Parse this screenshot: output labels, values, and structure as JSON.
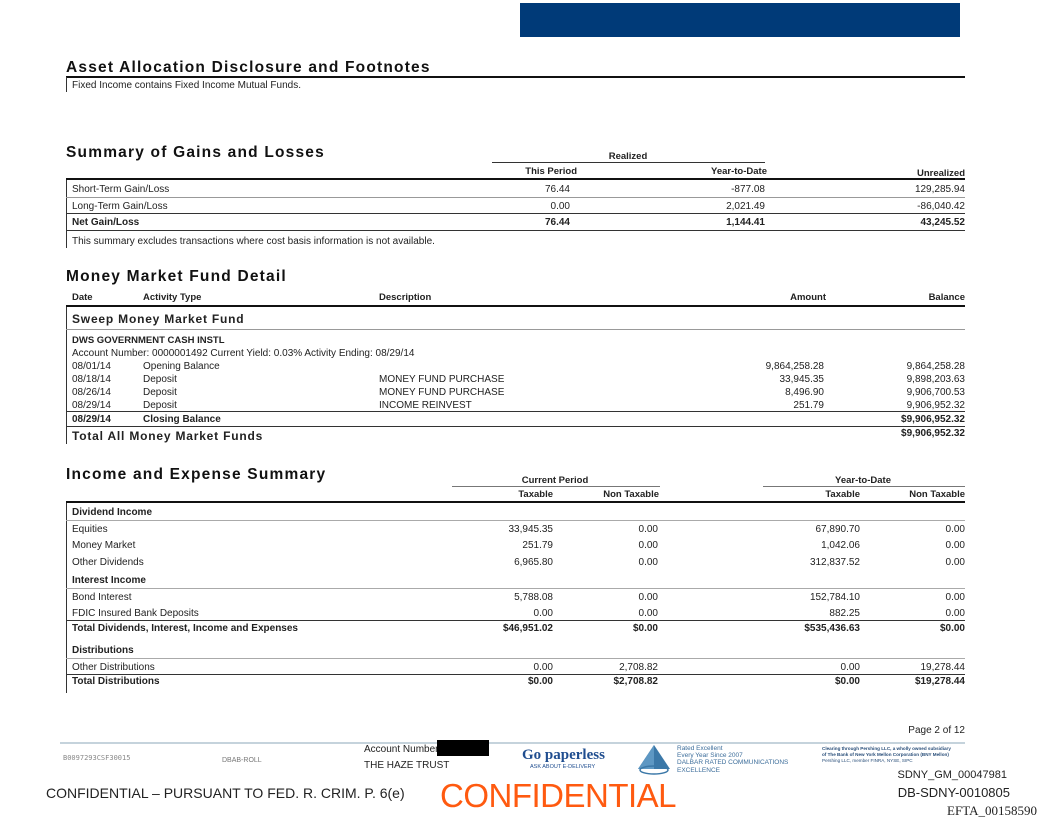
{
  "colors": {
    "header_bar": "#003a78",
    "confidential": "#ff5a10",
    "go_paperless": "#1f4d8f"
  },
  "asset_allocation": {
    "title": "Asset Allocation Disclosure and Footnotes",
    "note": "Fixed Income contains Fixed Income Mutual Funds."
  },
  "gains": {
    "title": "Summary of Gains and Losses",
    "realized": "Realized",
    "this_period": "This Period",
    "ytd": "Year-to-Date",
    "unrealized": "Unrealized",
    "rows": [
      {
        "label": "Short-Term Gain/Loss",
        "this_period": "76.44",
        "ytd": "-877.08",
        "unrealized": "129,285.94"
      },
      {
        "label": "Long-Term Gain/Loss",
        "this_period": "0.00",
        "ytd": "2,021.49",
        "unrealized": "-86,040.42"
      },
      {
        "label": "Net Gain/Loss",
        "this_period": "76.44",
        "ytd": "1,144.41",
        "unrealized": "43,245.52"
      }
    ],
    "note": "This summary excludes transactions where cost basis information is not available."
  },
  "mmf": {
    "title": "Money Market Fund Detail",
    "cols": {
      "date": "Date",
      "activity": "Activity Type",
      "description": "Description",
      "amount": "Amount",
      "balance": "Balance"
    },
    "sweep": "Sweep Money Market Fund",
    "fund": "DWS GOVERNMENT CASH INSTL",
    "account_line": "Account Number: 0000001492  Current Yield:  0.03%  Activity Ending: 08/29/14",
    "rows": [
      {
        "date": "08/01/14",
        "activity": "Opening Balance",
        "description": "",
        "amount": "9,864,258.28",
        "balance": "9,864,258.28"
      },
      {
        "date": "08/18/14",
        "activity": "Deposit",
        "description": "MONEY FUND PURCHASE",
        "amount": "33,945.35",
        "balance": "9,898,203.63"
      },
      {
        "date": "08/26/14",
        "activity": "Deposit",
        "description": "MONEY FUND PURCHASE",
        "amount": "8,496.90",
        "balance": "9,906,700.53"
      },
      {
        "date": "08/29/14",
        "activity": "Deposit",
        "description": "INCOME REINVEST",
        "amount": "251.79",
        "balance": "9,906,952.32"
      }
    ],
    "closing": {
      "date": "08/29/14",
      "activity": "Closing Balance",
      "balance": "$9,906,952.32"
    },
    "total": {
      "label": "Total All Money Market Funds",
      "balance": "$9,906,952.32"
    }
  },
  "income": {
    "title": "Income and Expense Summary",
    "current_period": "Current Period",
    "ytd": "Year-to-Date",
    "taxable": "Taxable",
    "non_taxable": "Non Taxable",
    "dividend_header": "Dividend Income",
    "dividends": [
      {
        "label": "Equities",
        "cp_tax": "33,945.35",
        "cp_non": "0.00",
        "ytd_tax": "67,890.70",
        "ytd_non": "0.00"
      },
      {
        "label": "Money Market",
        "cp_tax": "251.79",
        "cp_non": "0.00",
        "ytd_tax": "1,042.06",
        "ytd_non": "0.00"
      },
      {
        "label": "Other Dividends",
        "cp_tax": "6,965.80",
        "cp_non": "0.00",
        "ytd_tax": "312,837.52",
        "ytd_non": "0.00"
      }
    ],
    "interest_header": "Interest Income",
    "interest": [
      {
        "label": "Bond Interest",
        "cp_tax": "5,788.08",
        "cp_non": "0.00",
        "ytd_tax": "152,784.10",
        "ytd_non": "0.00"
      },
      {
        "label": "FDIC Insured Bank Deposits",
        "cp_tax": "0.00",
        "cp_non": "0.00",
        "ytd_tax": "882.25",
        "ytd_non": "0.00"
      }
    ],
    "total_div": {
      "label": "Total Dividends, Interest, Income and Expenses",
      "cp_tax": "$46,951.02",
      "cp_non": "$0.00",
      "ytd_tax": "$535,436.63",
      "ytd_non": "$0.00"
    },
    "dist_header": "Distributions",
    "other_dist": {
      "label": "Other Distributions",
      "cp_tax": "0.00",
      "cp_non": "2,708.82",
      "ytd_tax": "0.00",
      "ytd_non": "19,278.44"
    },
    "total_dist": {
      "label": "Total Distributions",
      "cp_tax": "$0.00",
      "cp_non": "$2,708.82",
      "ytd_tax": "$0.00",
      "ytd_non": "$19,278.44"
    }
  },
  "footer": {
    "page": "Page 2 of 12",
    "code": "B0097293CSF30015",
    "dbab": "DBAB-ROLL",
    "account_label": "Account Number:",
    "account_name": "THE HAZE TRUST",
    "go_paperless": "Go paperless",
    "edelivery": "ASK ABOUT E-DELIVERY",
    "rated": [
      "Rated Excellent",
      "Every Year Since 2007",
      "DALBAR RATED COMMUNICATIONS",
      "EXCELLENCE"
    ],
    "clearing": [
      "Clearing through Pershing LLC, a wholly owned subsidiary",
      "of The Bank of New York Mellon Corporation (BNY Mellon)",
      "Pershing LLC, member FINRA, NYSE, SIPC"
    ],
    "confidential_stamp": "CONFIDENTIAL",
    "sdny_gm": "SDNY_GM_00047981",
    "db_sdny": "DB-SDNY-0010805",
    "efta": "EFTA_00158590",
    "confidential_notice": "CONFIDENTIAL – PURSUANT TO FED. R. CRIM. P. 6(e)"
  }
}
